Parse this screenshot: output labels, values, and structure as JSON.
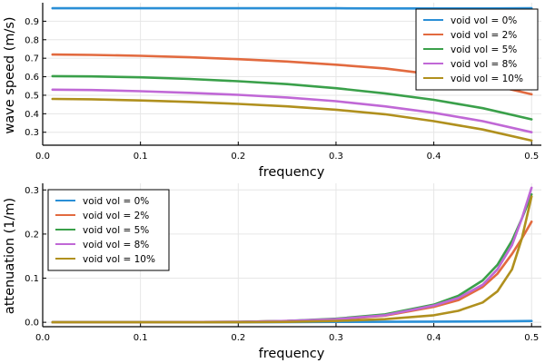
{
  "chart_data": [
    {
      "type": "line",
      "title": "",
      "xlabel": "frequency",
      "ylabel": "wave speed (m/s)",
      "xlim": [
        0.0,
        0.51
      ],
      "ylim": [
        0.23,
        1.0
      ],
      "xticks": [
        0.0,
        0.1,
        0.2,
        0.3,
        0.4,
        0.5
      ],
      "xtick_labels": [
        "0.0",
        "0.1",
        "0.2",
        "0.3",
        "0.4",
        "0.5"
      ],
      "yticks": [
        0.3,
        0.4,
        0.5,
        0.6,
        0.7,
        0.8,
        0.9
      ],
      "ytick_labels": [
        "0.3",
        "0.4",
        "0.5",
        "0.6",
        "0.7",
        "0.8",
        "0.9"
      ],
      "grid": true,
      "legend_position": "top-right",
      "x": [
        0.01,
        0.05,
        0.1,
        0.15,
        0.2,
        0.25,
        0.3,
        0.35,
        0.4,
        0.45,
        0.5
      ],
      "series": [
        {
          "name": "void vol = 0%",
          "color": "#2a8fd6",
          "values": [
            0.97,
            0.97,
            0.97,
            0.97,
            0.97,
            0.97,
            0.97,
            0.969,
            0.969,
            0.969,
            0.97
          ]
        },
        {
          "name": "void vol = 2%",
          "color": "#e26a3f",
          "values": [
            0.72,
            0.718,
            0.713,
            0.705,
            0.695,
            0.682,
            0.665,
            0.645,
            0.612,
            0.567,
            0.505
          ]
        },
        {
          "name": "void vol = 5%",
          "color": "#3aa04a",
          "values": [
            0.603,
            0.602,
            0.597,
            0.588,
            0.576,
            0.56,
            0.538,
            0.51,
            0.475,
            0.43,
            0.37
          ]
        },
        {
          "name": "void vol = 8%",
          "color": "#c068d6",
          "values": [
            0.53,
            0.528,
            0.522,
            0.513,
            0.502,
            0.488,
            0.468,
            0.44,
            0.405,
            0.36,
            0.3
          ]
        },
        {
          "name": "void vol = 10%",
          "color": "#b0901e",
          "values": [
            0.48,
            0.478,
            0.472,
            0.464,
            0.453,
            0.44,
            0.422,
            0.397,
            0.36,
            0.315,
            0.255
          ]
        }
      ]
    },
    {
      "type": "line",
      "title": "",
      "xlabel": "frequency",
      "ylabel": "attenuation (1/m)",
      "xlim": [
        0.0,
        0.51
      ],
      "ylim": [
        -0.01,
        0.315
      ],
      "xticks": [
        0.0,
        0.1,
        0.2,
        0.3,
        0.4,
        0.5
      ],
      "xtick_labels": [
        "0.0",
        "0.1",
        "0.2",
        "0.3",
        "0.4",
        "0.5"
      ],
      "yticks": [
        0.0,
        0.1,
        0.2,
        0.3
      ],
      "ytick_labels": [
        "0.0",
        "0.1",
        "0.2",
        "0.3"
      ],
      "grid": true,
      "legend_position": "top-left",
      "x": [
        0.01,
        0.1,
        0.2,
        0.25,
        0.3,
        0.35,
        0.4,
        0.425,
        0.45,
        0.465,
        0.48,
        0.49,
        0.5
      ],
      "series": [
        {
          "name": "void vol = 0%",
          "color": "#2a8fd6",
          "values": [
            0.0,
            0.0,
            0.0,
            0.0005,
            0.001,
            0.0012,
            0.0015,
            0.0017,
            0.002,
            0.0022,
            0.0025,
            0.0027,
            0.003
          ]
        },
        {
          "name": "void vol = 2%",
          "color": "#e26a3f",
          "values": [
            0.0,
            0.0,
            0.001,
            0.003,
            0.006,
            0.015,
            0.035,
            0.05,
            0.08,
            0.11,
            0.155,
            0.19,
            0.228
          ]
        },
        {
          "name": "void vol = 5%",
          "color": "#3aa04a",
          "values": [
            0.0,
            0.0,
            0.001,
            0.003,
            0.008,
            0.018,
            0.04,
            0.06,
            0.095,
            0.13,
            0.185,
            0.235,
            0.29
          ]
        },
        {
          "name": "void vol = 8%",
          "color": "#c068d6",
          "values": [
            0.0,
            0.0,
            0.001,
            0.003,
            0.007,
            0.016,
            0.038,
            0.055,
            0.085,
            0.12,
            0.175,
            0.235,
            0.305
          ]
        },
        {
          "name": "void vol = 10%",
          "color": "#b0901e",
          "values": [
            0.0,
            0.0,
            0.0,
            0.001,
            0.003,
            0.007,
            0.016,
            0.026,
            0.045,
            0.07,
            0.12,
            0.19,
            0.285
          ]
        }
      ]
    }
  ]
}
